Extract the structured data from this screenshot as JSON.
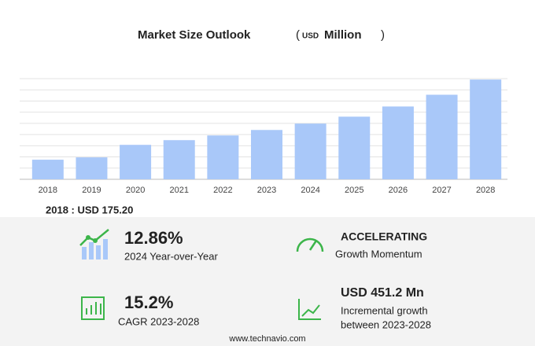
{
  "chart_data": {
    "type": "bar",
    "title": "Market Size Outlook",
    "title_open": "(",
    "title_unit": "USD",
    "title_unit_name": "Million",
    "title_close": ")",
    "categories": [
      "2018",
      "2019",
      "2020",
      "2021",
      "2022",
      "2023",
      "2024",
      "2025",
      "2026",
      "2027",
      "2028"
    ],
    "values": [
      175.2,
      196,
      308,
      350,
      392,
      441,
      498,
      560,
      651,
      756,
      892
    ],
    "color": "#a9c8f9",
    "ylim": [
      0,
      900
    ]
  },
  "summary": {
    "base": "2018 : USD  175.20",
    "kpis": [
      {
        "value": "12.86%",
        "label": "2024 Year-over-Year"
      },
      {
        "value": "ACCELERATING",
        "label": "Growth Momentum"
      },
      {
        "value": "15.2%",
        "label": "CAGR 2023-2028"
      },
      {
        "value": "USD 451.2 Mn",
        "label": "Incremental growth",
        "label2": "between 2023-2028"
      }
    ]
  },
  "footer": "www.technavio.com"
}
